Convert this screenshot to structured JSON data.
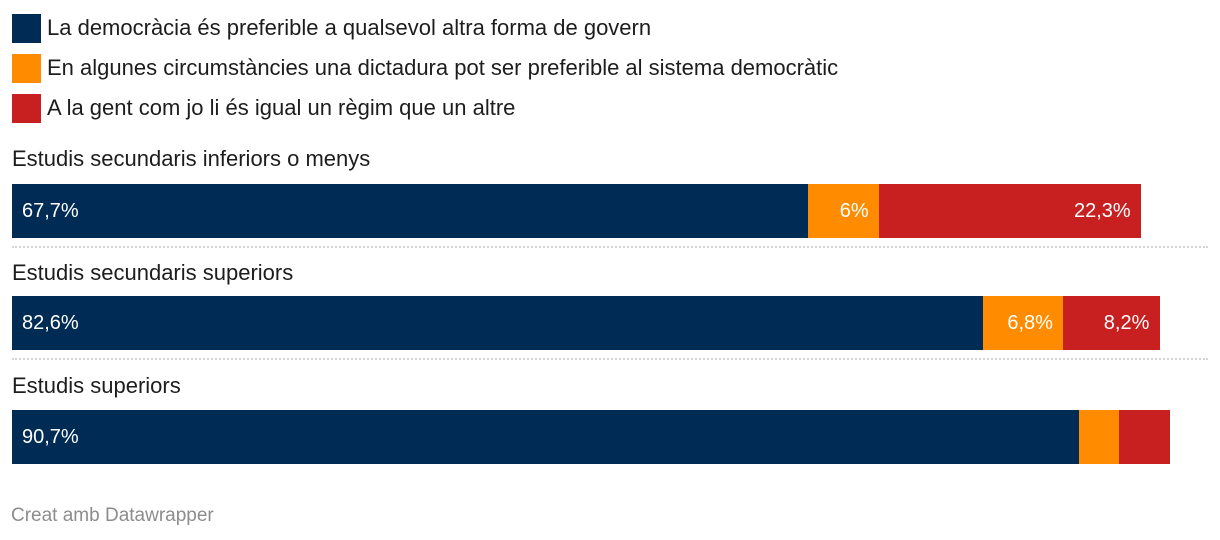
{
  "chart_data": {
    "type": "bar",
    "orientation": "horizontal",
    "stacked": true,
    "xlim": [
      0,
      100
    ],
    "categories": [
      "Estudis secundaris inferiors o menys",
      "Estudis secundaris superiors",
      "Estudis superiors"
    ],
    "series": [
      {
        "name": "La democràcia és preferible a qualsevol altra forma de govern",
        "color": "#002b55",
        "values": [
          67.7,
          82.6,
          90.7
        ],
        "labels": [
          "67,7%",
          "82,6%",
          "90,7%"
        ]
      },
      {
        "name": "En algunes circumstàncies una dictadura pot ser preferible al sistema democràtic",
        "color": "#ff8c00",
        "values": [
          6,
          6.8,
          3.4
        ],
        "labels": [
          "6%",
          "6,8%",
          ""
        ]
      },
      {
        "name": "A la gent com jo li és igual un règim que un altre",
        "color": "#c82020",
        "values": [
          22.3,
          8.2,
          4.4
        ],
        "labels": [
          "22,3%",
          "8,2%",
          ""
        ]
      }
    ]
  },
  "footer": "Creat amb Datawrapper"
}
